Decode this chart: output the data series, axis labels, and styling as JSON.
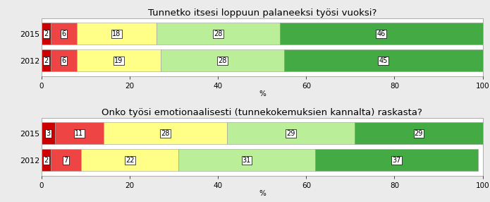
{
  "chart1": {
    "title": "Tunnetko itsesi loppuun palaneeksi työsi vuoksi?",
    "rows": [
      {
        "label": "2015",
        "values": [
          2,
          6,
          18,
          28,
          46
        ]
      },
      {
        "label": "2012",
        "values": [
          2,
          6,
          19,
          28,
          45
        ]
      }
    ]
  },
  "chart2": {
    "title": "Onko työsi emotionaalisesti (tunnekokemuksien kannalta) raskasta?",
    "rows": [
      {
        "label": "2015",
        "values": [
          3,
          11,
          28,
          29,
          29
        ]
      },
      {
        "label": "2012",
        "values": [
          2,
          7,
          22,
          31,
          37
        ]
      }
    ]
  },
  "colors": [
    "#cc0000",
    "#ee4444",
    "#ffff88",
    "#bbee99",
    "#44aa44"
  ],
  "xlabel": "%",
  "xlim": [
    0,
    100
  ],
  "bar_height": 0.82,
  "title_fontsize": 9.5,
  "label_fontsize": 8,
  "tick_fontsize": 7.5,
  "value_fontsize": 7,
  "background_color": "#ebebeb",
  "axes_background": "#ffffff",
  "bar_edgecolor": "#999999",
  "bar_edgewidth": 0.4
}
